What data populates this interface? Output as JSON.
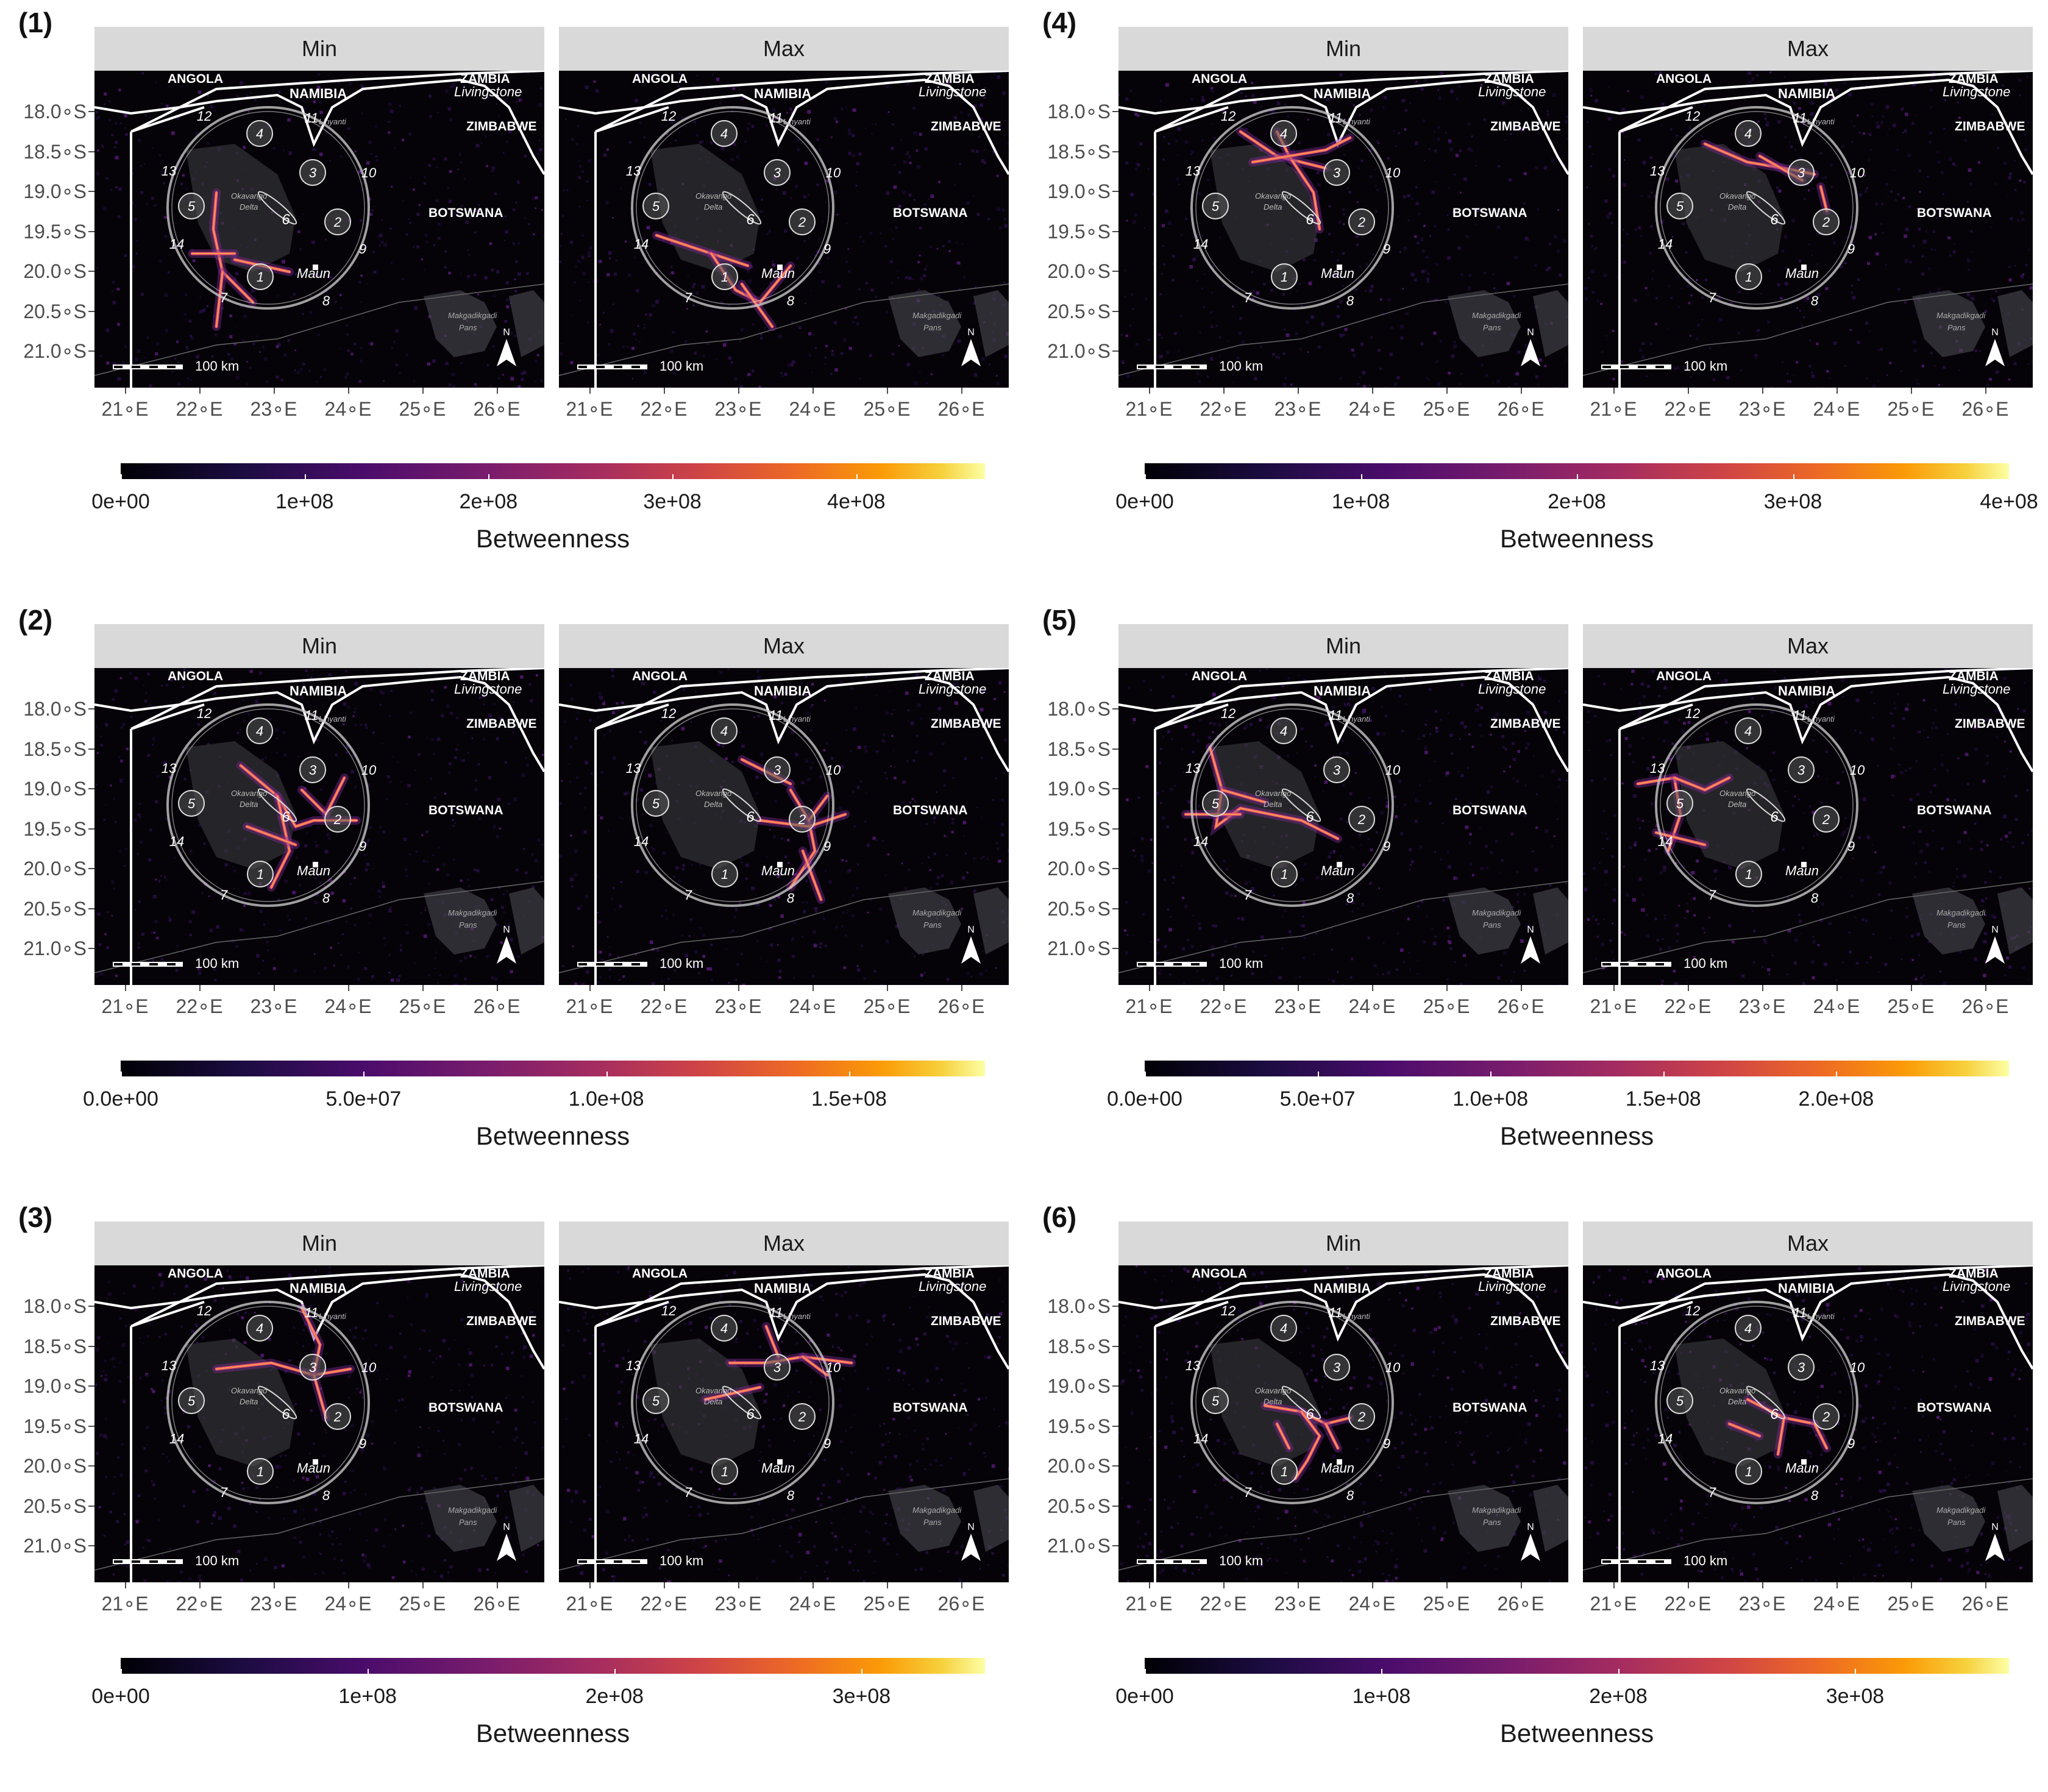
{
  "panels": [
    {
      "label": "(1)",
      "legend_ticks": [
        {
          "t": "0e+00",
          "v": 0
        },
        {
          "t": "1e+08",
          "v": 100000000
        },
        {
          "t": "2e+08",
          "v": 200000000
        },
        {
          "t": "3e+08",
          "v": 300000000
        },
        {
          "t": "4e+08",
          "v": 400000000
        }
      ],
      "legend_max": 470000000
    },
    {
      "label": "(4)",
      "legend_ticks": [
        {
          "t": "0e+00",
          "v": 0
        },
        {
          "t": "1e+08",
          "v": 100000000
        },
        {
          "t": "2e+08",
          "v": 200000000
        },
        {
          "t": "3e+08",
          "v": 300000000
        },
        {
          "t": "4e+08",
          "v": 400000000
        }
      ],
      "legend_max": 400000000
    },
    {
      "label": "(2)",
      "legend_ticks": [
        {
          "t": "0.0e+00",
          "v": 0
        },
        {
          "t": "5.0e+07",
          "v": 50000000
        },
        {
          "t": "1.0e+08",
          "v": 100000000
        },
        {
          "t": "1.5e+08",
          "v": 150000000
        }
      ],
      "legend_max": 178000000
    },
    {
      "label": "(5)",
      "legend_ticks": [
        {
          "t": "0.0e+00",
          "v": 0
        },
        {
          "t": "5.0e+07",
          "v": 50000000
        },
        {
          "t": "1.0e+08",
          "v": 100000000
        },
        {
          "t": "1.5e+08",
          "v": 150000000
        },
        {
          "t": "2.0e+08",
          "v": 200000000
        }
      ],
      "legend_max": 250000000
    },
    {
      "label": "(3)",
      "legend_ticks": [
        {
          "t": "0e+00",
          "v": 0
        },
        {
          "t": "1e+08",
          "v": 100000000
        },
        {
          "t": "2e+08",
          "v": 200000000
        },
        {
          "t": "3e+08",
          "v": 300000000
        }
      ],
      "legend_max": 350000000
    },
    {
      "label": "(6)",
      "legend_ticks": [
        {
          "t": "0e+00",
          "v": 0
        },
        {
          "t": "1e+08",
          "v": 100000000
        },
        {
          "t": "2e+08",
          "v": 200000000
        },
        {
          "t": "3e+08",
          "v": 300000000
        }
      ],
      "legend_max": 365000000
    }
  ],
  "facets": [
    "Min",
    "Max"
  ],
  "legend_title": "Betweenness",
  "lat_labels": [
    "18.0∘S",
    "18.5∘S",
    "19.0∘S",
    "19.5∘S",
    "20.0∘S",
    "20.5∘S",
    "21.0∘S"
  ],
  "lon_labels": [
    "21∘E",
    "22∘E",
    "23∘E",
    "24∘E",
    "25∘E",
    "26∘E"
  ],
  "map_labels": {
    "angola": "ANGOLA",
    "namibia": "NAMIBIA",
    "zambia": "ZAMBIA",
    "livingstone": "Livingstone",
    "zimbabwe": "ZIMBABWE",
    "botswana": "BOTSWANA",
    "okavango": "Okavango",
    "delta": "Delta",
    "maun": "Maun",
    "makgadikgadi": "Makgadikgadi",
    "pans": "Pans",
    "linyanti": "Linyanti",
    "north": "N",
    "scalebar": "100 km"
  },
  "regions": [
    "1",
    "2",
    "3",
    "4",
    "5",
    "6"
  ],
  "ring_numbers": [
    "7",
    "8",
    "9",
    "10",
    "11",
    "12",
    "13",
    "14"
  ],
  "colors": {
    "map_bg": "#050308",
    "strip": "#d9d9d9",
    "road": "#e8536a",
    "road_hot": "#fca050"
  }
}
